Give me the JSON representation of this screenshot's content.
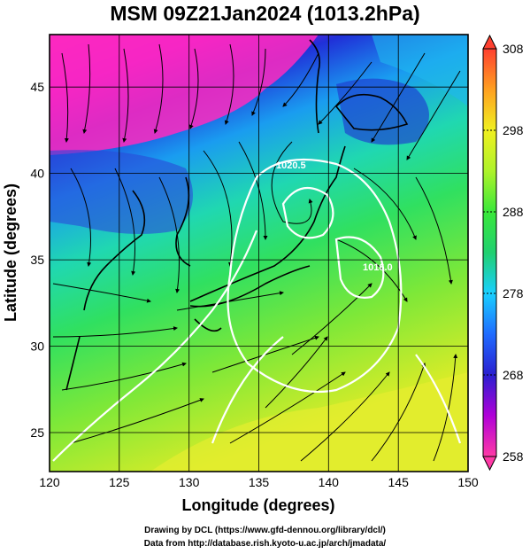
{
  "title": "MSM 09Z21Jan2024 (1013.2hPa)",
  "x_axis": {
    "label": "Longitude (degrees)",
    "ticks": [
      "120",
      "125",
      "130",
      "135",
      "140",
      "145",
      "150"
    ],
    "range": [
      120,
      150
    ]
  },
  "y_axis": {
    "label": "Latitude  (degrees)",
    "ticks": [
      "25",
      "30",
      "35",
      "40",
      "45"
    ],
    "range": [
      22.5,
      47.8
    ]
  },
  "colorbar": {
    "ticks": [
      "258",
      "268",
      "278",
      "288",
      "298",
      "308"
    ],
    "range": [
      258,
      308
    ],
    "colors": [
      "#ff3aa6",
      "#b000d8",
      "#2a1fd0",
      "#1f6bff",
      "#19d0ff",
      "#20d070",
      "#3ae83a",
      "#aef32a",
      "#f0f020",
      "#ffa020",
      "#ff4030"
    ]
  },
  "contours": {
    "labels": [
      "1020.5",
      "1016.0"
    ],
    "color": "#ffffff"
  },
  "credits": {
    "line1": "Drawing by DCL (https://www.gfd-dennou.org/library/dcl/)",
    "line2": "Data from http://database.rish.kyoto-u.ac.jp/arch/jmadata/"
  }
}
